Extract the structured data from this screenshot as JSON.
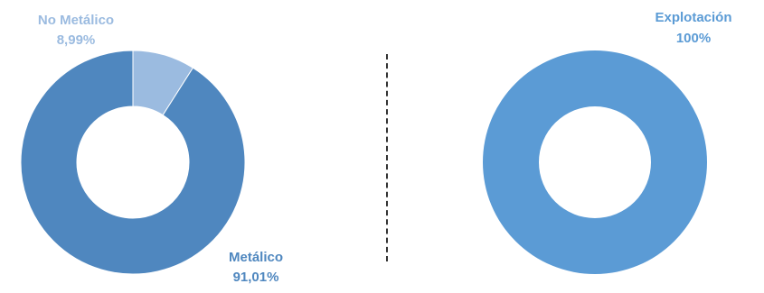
{
  "chart_data": [
    {
      "type": "pie",
      "donut": true,
      "categories": [
        "No Metálico",
        "Metálico"
      ],
      "values": [
        8.99,
        91.01
      ],
      "value_labels": [
        "8,99%",
        "91,01%"
      ],
      "colors": [
        "#9bbbe0",
        "#4f87bf"
      ],
      "label_colors": [
        "#9bbbe0",
        "#4f87bf"
      ],
      "label_positions": [
        "top-left",
        "bottom-right"
      ]
    },
    {
      "type": "pie",
      "donut": true,
      "categories": [
        "Explotación"
      ],
      "values": [
        100
      ],
      "value_labels": [
        "100%"
      ],
      "colors": [
        "#5b9bd5"
      ],
      "label_colors": [
        "#5b9bd5"
      ],
      "label_positions": [
        "top-right"
      ]
    }
  ]
}
